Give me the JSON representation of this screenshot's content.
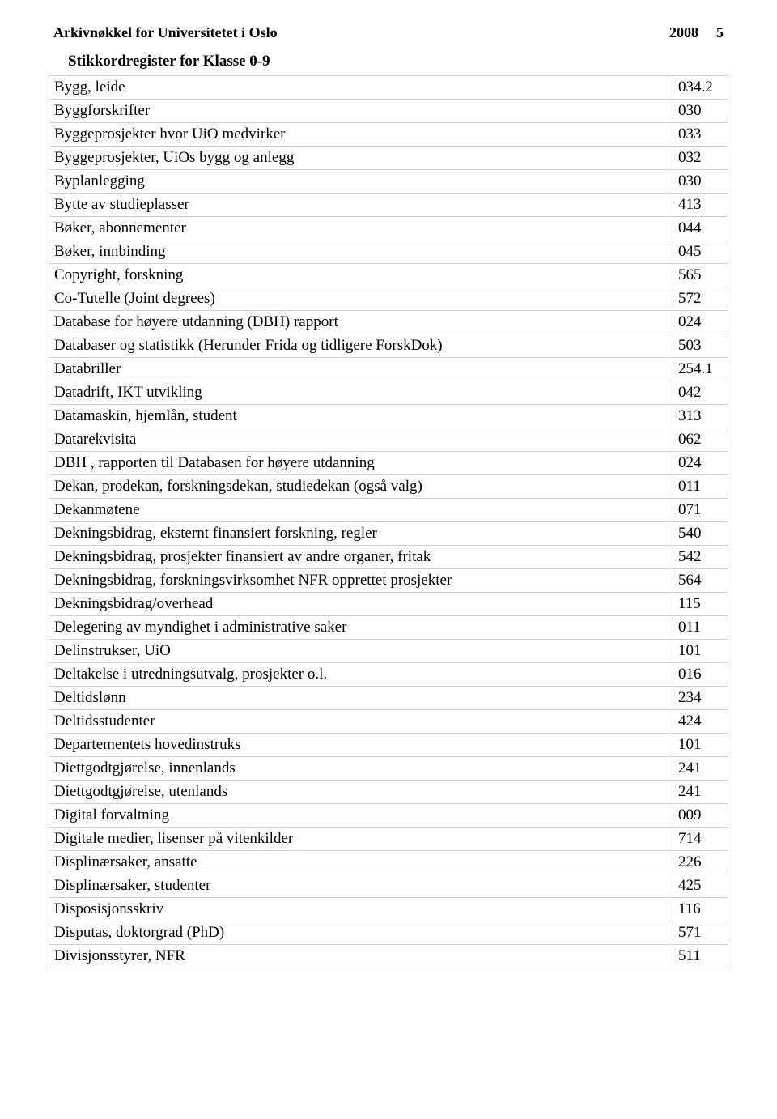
{
  "header": {
    "title": "Arkivnøkkel for Universitetet i Oslo",
    "year": "2008",
    "page_number": "5"
  },
  "subtitle": "Stikkordregister for Klasse 0-9",
  "rows": [
    {
      "label": "Bygg, leide",
      "code": "034.2"
    },
    {
      "label": "Byggforskrifter",
      "code": "030"
    },
    {
      "label": "Byggeprosjekter hvor UiO medvirker",
      "code": "033"
    },
    {
      "label": "Byggeprosjekter, UiOs bygg og anlegg",
      "code": "032"
    },
    {
      "label": "Byplanlegging",
      "code": "030"
    },
    {
      "label": "Bytte av studieplasser",
      "code": "413"
    },
    {
      "label": "Bøker, abonnementer",
      "code": "044"
    },
    {
      "label": "Bøker, innbinding",
      "code": "045"
    },
    {
      "label": "Copyright, forskning",
      "code": "565"
    },
    {
      "label": "Co-Tutelle (Joint degrees)",
      "code": "572"
    },
    {
      "label": "Database for høyere utdanning (DBH) rapport",
      "code": "024"
    },
    {
      "label": "Databaser og statistikk (Herunder Frida og tidligere ForskDok)",
      "code": "503"
    },
    {
      "label": "Databriller",
      "code": "254.1"
    },
    {
      "label": "Datadrift, IKT utvikling",
      "code": "042"
    },
    {
      "label": "Datamaskin, hjemlån, student",
      "code": "313"
    },
    {
      "label": "Datarekvisita",
      "code": "062"
    },
    {
      "label": "DBH , rapporten til Databasen for høyere utdanning",
      "code": "024"
    },
    {
      "label": "Dekan, prodekan, forskningsdekan, studiedekan (også valg)",
      "code": "011"
    },
    {
      "label": "Dekanmøtene",
      "code": "071"
    },
    {
      "label": "Dekningsbidrag, eksternt finansiert forskning, regler",
      "code": "540"
    },
    {
      "label": "Dekningsbidrag, prosjekter finansiert av andre organer, fritak",
      "code": "542"
    },
    {
      "label": "Dekningsbidrag, forskningsvirksomhet NFR opprettet prosjekter",
      "code": "564"
    },
    {
      "label": "Dekningsbidrag/overhead",
      "code": "115"
    },
    {
      "label": "Delegering av myndighet i administrative saker",
      "code": "011"
    },
    {
      "label": "Delinstrukser, UiO",
      "code": "101"
    },
    {
      "label": "Deltakelse i utredningsutvalg, prosjekter o.l.",
      "code": "016"
    },
    {
      "label": "Deltidslønn",
      "code": "234"
    },
    {
      "label": "Deltidsstudenter",
      "code": "424"
    },
    {
      "label": "Departementets hovedinstruks",
      "code": "101"
    },
    {
      "label": "Diettgodtgjørelse, innenlands",
      "code": "241"
    },
    {
      "label": "Diettgodtgjørelse, utenlands",
      "code": "241"
    },
    {
      "label": "Digital forvaltning",
      "code": "009"
    },
    {
      "label": "Digitale medier, lisenser på vitenkilder",
      "code": "714"
    },
    {
      "label": "Displinærsaker, ansatte",
      "code": "226"
    },
    {
      "label": "Displinærsaker, studenter",
      "code": "425"
    },
    {
      "label": "Disposisjonsskriv",
      "code": "116"
    },
    {
      "label": "Disputas, doktorgrad (PhD)",
      "code": "571"
    },
    {
      "label": "Divisjonsstyrer, NFR",
      "code": "511"
    }
  ]
}
